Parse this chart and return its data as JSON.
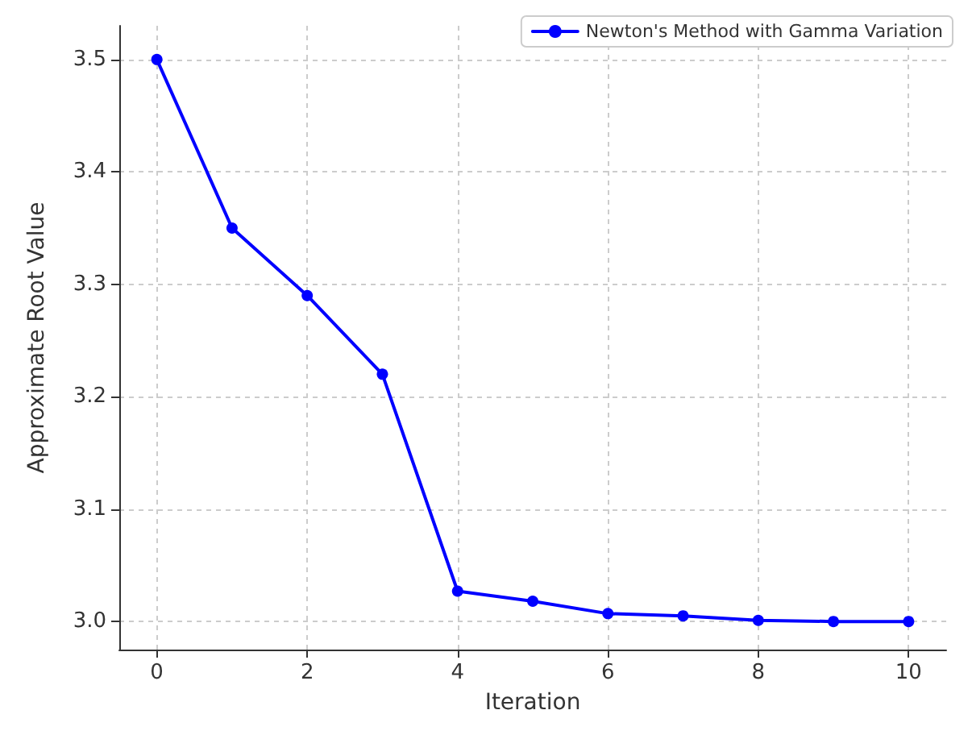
{
  "chart_data": {
    "type": "line",
    "xlabel": "Iteration",
    "ylabel": "Approximate Root Value",
    "x": [
      0,
      1,
      2,
      3,
      4,
      5,
      6,
      7,
      8,
      9,
      10
    ],
    "series": [
      {
        "name": "Newton's Method with Gamma Variation",
        "color": "#0000ff",
        "values": [
          3.5,
          3.35,
          3.29,
          3.22,
          3.027,
          3.018,
          3.007,
          3.005,
          3.001,
          3.0,
          3.0
        ]
      }
    ],
    "xlim": [
      -0.5,
      10.5
    ],
    "xticks": [
      0,
      2,
      4,
      6,
      8,
      10
    ],
    "ylim": [
      2.975,
      3.53
    ],
    "yticks": [
      {
        "value": 3,
        "label": "3.0"
      },
      3.1,
      3.2,
      3.3,
      3.4,
      3.5
    ],
    "grid": true,
    "legend": "top right",
    "marker": "circle",
    "line_style": "solid"
  }
}
